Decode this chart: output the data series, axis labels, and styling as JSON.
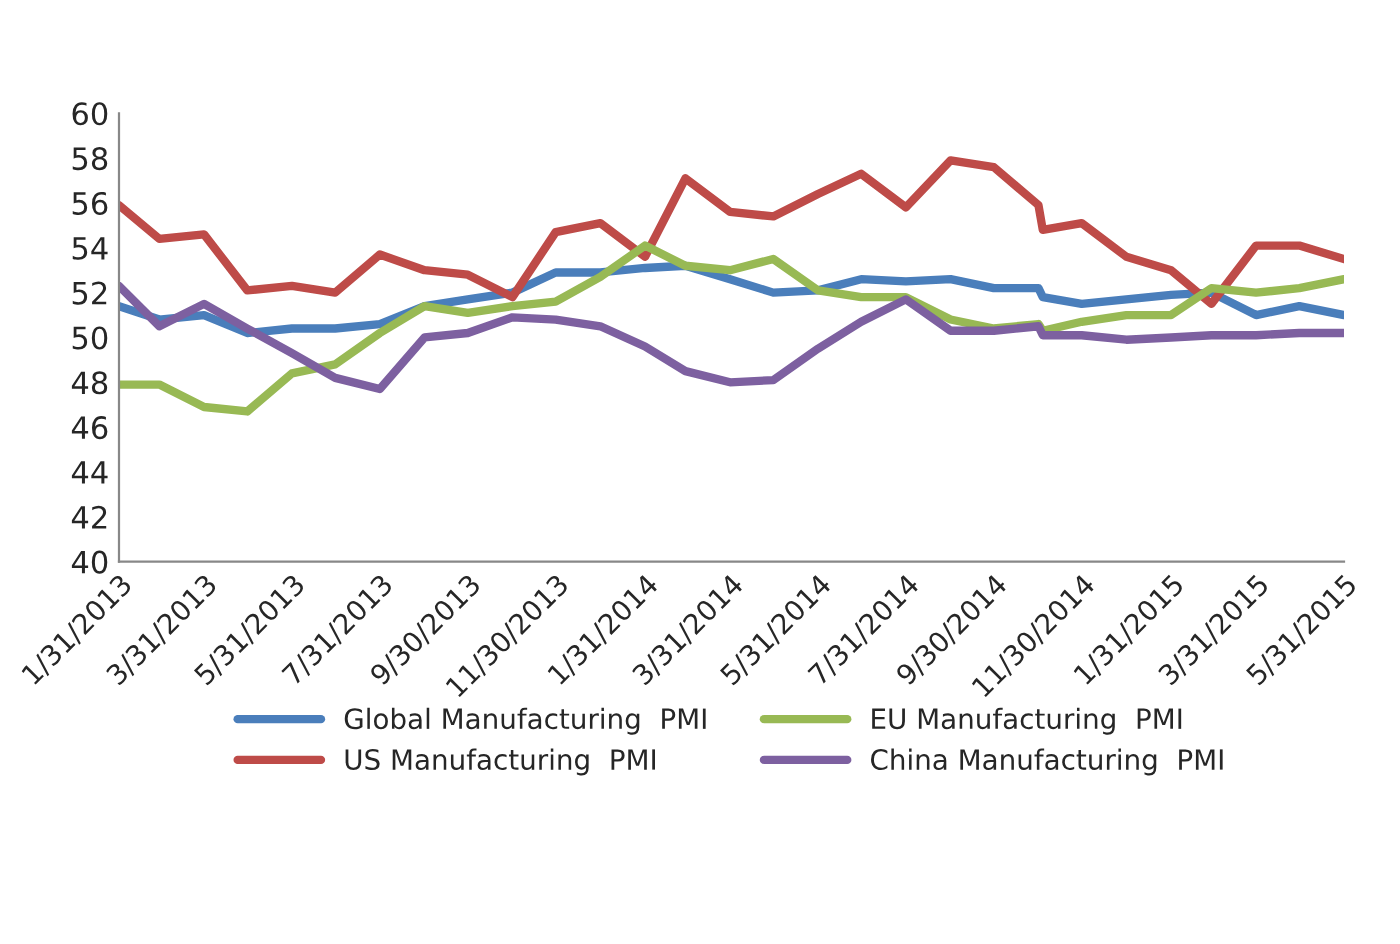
{
  "chart_data": {
    "type": "line",
    "x": [
      "2013-01-31",
      "2013-02-28",
      "2013-03-31",
      "2013-04-30",
      "2013-05-31",
      "2013-06-30",
      "2013-07-31",
      "2013-08-31",
      "2013-09-30",
      "2013-10-31",
      "2013-11-30",
      "2013-12-31",
      "2014-01-31",
      "2014-02-28",
      "2014-03-31",
      "2014-04-30",
      "2014-05-31",
      "2014-06-30",
      "2014-07-31",
      "2014-08-31",
      "2014-09-30",
      "2014-10-31",
      "2014-11-03",
      "2014-11-30",
      "2014-12-31",
      "2015-01-31",
      "2015-02-28",
      "2015-03-31",
      "2015-04-30",
      "2015-05-31"
    ],
    "series": [
      {
        "name": "Global Manufacturing  PMI",
        "color": "#4a7ebb",
        "values": [
          51.4,
          50.8,
          51.0,
          50.2,
          50.4,
          50.4,
          50.6,
          51.4,
          51.7,
          52.0,
          52.9,
          52.9,
          53.1,
          53.2,
          52.6,
          52.0,
          52.1,
          52.6,
          52.5,
          52.6,
          52.2,
          52.2,
          51.8,
          51.5,
          51.7,
          51.9,
          52.0,
          51.0,
          51.4,
          51.0
        ]
      },
      {
        "name": "US Manufacturing  PMI",
        "color": "#be4b48",
        "values": [
          55.9,
          54.4,
          54.6,
          52.1,
          52.3,
          52.0,
          53.7,
          53.0,
          52.8,
          51.8,
          54.7,
          55.1,
          53.6,
          57.1,
          55.6,
          55.4,
          56.4,
          57.3,
          55.8,
          57.9,
          57.6,
          55.9,
          54.8,
          55.1,
          53.6,
          53.0,
          51.5,
          54.1,
          54.1,
          53.5
        ]
      },
      {
        "name": "EU Manufacturing  PMI",
        "color": "#98b954",
        "values": [
          47.9,
          47.9,
          46.9,
          46.7,
          48.4,
          48.8,
          50.2,
          51.4,
          51.1,
          51.4,
          51.6,
          52.7,
          54.1,
          53.2,
          53.0,
          53.5,
          52.1,
          51.8,
          51.8,
          50.8,
          50.4,
          50.6,
          50.3,
          50.7,
          51.0,
          51.0,
          52.2,
          52.0,
          52.2,
          52.6
        ]
      },
      {
        "name": "China Manufacturing  PMI",
        "color": "#7d60a0",
        "values": [
          52.3,
          50.5,
          51.5,
          50.4,
          49.3,
          48.2,
          47.7,
          50.0,
          50.2,
          50.9,
          50.8,
          50.5,
          49.6,
          48.5,
          48.0,
          48.1,
          49.5,
          50.7,
          51.7,
          50.3,
          50.3,
          50.5,
          50.1,
          50.1,
          49.9,
          50.0,
          50.1,
          50.1,
          50.2,
          50.2
        ]
      }
    ],
    "xlim": [
      "2013-01-31",
      "2015-05-31"
    ],
    "xticks": [
      {
        "value": "2013-01-31",
        "label": "1/31/2013"
      },
      {
        "value": "2013-03-31",
        "label": "3/31/2013"
      },
      {
        "value": "2013-05-31",
        "label": "5/31/2013"
      },
      {
        "value": "2013-07-31",
        "label": "7/31/2013"
      },
      {
        "value": "2013-09-30",
        "label": "9/30/2013"
      },
      {
        "value": "2013-11-30",
        "label": "11/30/2013"
      },
      {
        "value": "2014-01-31",
        "label": "1/31/2014"
      },
      {
        "value": "2014-03-31",
        "label": "3/31/2014"
      },
      {
        "value": "2014-05-31",
        "label": "5/31/2014"
      },
      {
        "value": "2014-07-31",
        "label": "7/31/2014"
      },
      {
        "value": "2014-09-30",
        "label": "9/30/2014"
      },
      {
        "value": "2014-11-30",
        "label": "11/30/2014"
      },
      {
        "value": "2015-01-31",
        "label": "1/31/2015"
      },
      {
        "value": "2015-03-31",
        "label": "3/31/2015"
      },
      {
        "value": "2015-05-31",
        "label": "5/31/2015"
      }
    ],
    "ylim": [
      40,
      60
    ],
    "yticks": [
      40,
      42,
      44,
      46,
      48,
      50,
      52,
      54,
      56,
      58,
      60
    ],
    "grid": false,
    "legend": "bottom",
    "marker": "none",
    "line_style": "solid"
  }
}
